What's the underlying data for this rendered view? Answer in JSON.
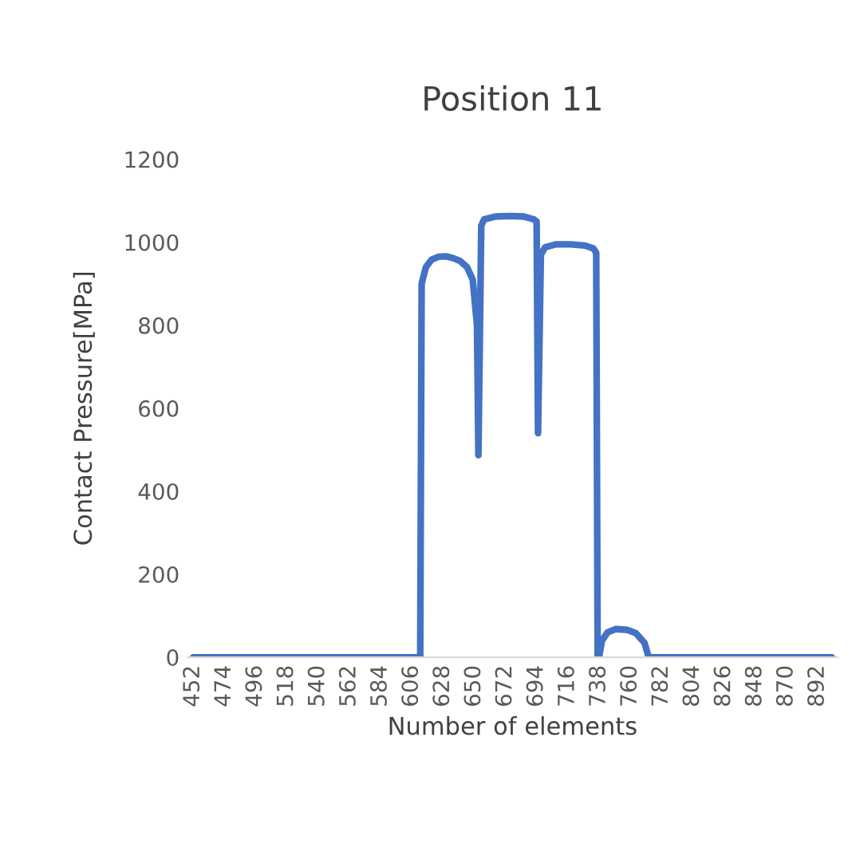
{
  "chart_data": {
    "type": "line",
    "title": "Position 11",
    "xlabel": "Number of elements",
    "ylabel": "Contact Pressure[MPa]",
    "xlim": [
      448,
      906
    ],
    "xticks": [
      452,
      474,
      496,
      518,
      540,
      562,
      584,
      606,
      628,
      650,
      672,
      694,
      716,
      738,
      760,
      782,
      804,
      826,
      848,
      870,
      892
    ],
    "ylim": [
      0,
      1200
    ],
    "yticks": [
      0,
      200,
      400,
      600,
      800,
      1000,
      1200
    ],
    "grid": false,
    "marker": "none",
    "line_style": "solid",
    "series": [
      {
        "color": "#4472c4",
        "x": [
          452,
          612,
          613,
          616,
          620,
          625,
          630,
          635,
          640,
          645,
          649,
          652,
          653,
          655,
          657,
          665,
          675,
          685,
          692,
          694,
          695,
          697,
          700,
          708,
          718,
          728,
          734,
          736,
          737,
          738,
          740,
          744,
          750,
          758,
          764,
          770,
          773,
          902
        ],
        "values": [
          0,
          0,
          900,
          940,
          958,
          965,
          966,
          962,
          955,
          940,
          910,
          800,
          487,
          1040,
          1055,
          1062,
          1063,
          1062,
          1055,
          1050,
          540,
          970,
          988,
          995,
          995,
          992,
          985,
          975,
          0,
          0,
          40,
          60,
          68,
          66,
          58,
          35,
          0,
          0
        ]
      }
    ]
  }
}
